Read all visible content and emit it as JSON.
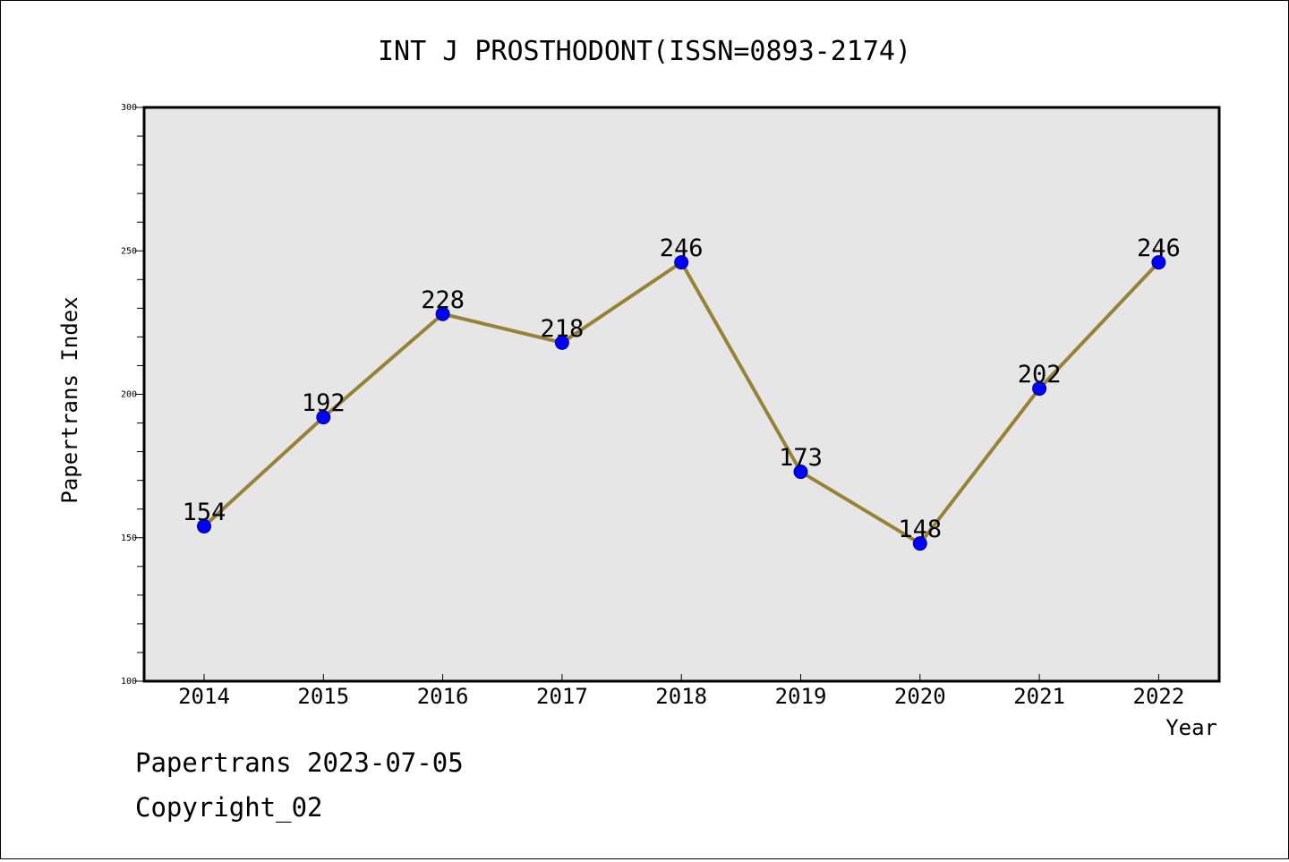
{
  "colors": {
    "plot_background": "#e6e6e6",
    "line": "#978238",
    "marker": "#0000ff",
    "marker_edge": "#000080"
  },
  "chart_data": {
    "type": "line",
    "title": "INT J PROSTHODONT(ISSN=0893-2174)",
    "xlabel": "Year",
    "ylabel": "Papertrans Index",
    "categories": [
      "2014",
      "2015",
      "2016",
      "2017",
      "2018",
      "2019",
      "2020",
      "2021",
      "2022"
    ],
    "series": [
      {
        "values": [
          154,
          192,
          228,
          218,
          246,
          173,
          148,
          202,
          246
        ]
      }
    ],
    "data_labels": [
      "154",
      "192",
      "228",
      "218",
      "246",
      "173",
      "148",
      "202",
      "246"
    ],
    "ylim": [
      100,
      300
    ],
    "yticks": [
      "100",
      "150",
      "200",
      "250",
      "300"
    ],
    "grid": false,
    "legend": "none"
  },
  "footer": {
    "line1": "Papertrans 2023-07-05",
    "line2": "Copyright_02"
  }
}
